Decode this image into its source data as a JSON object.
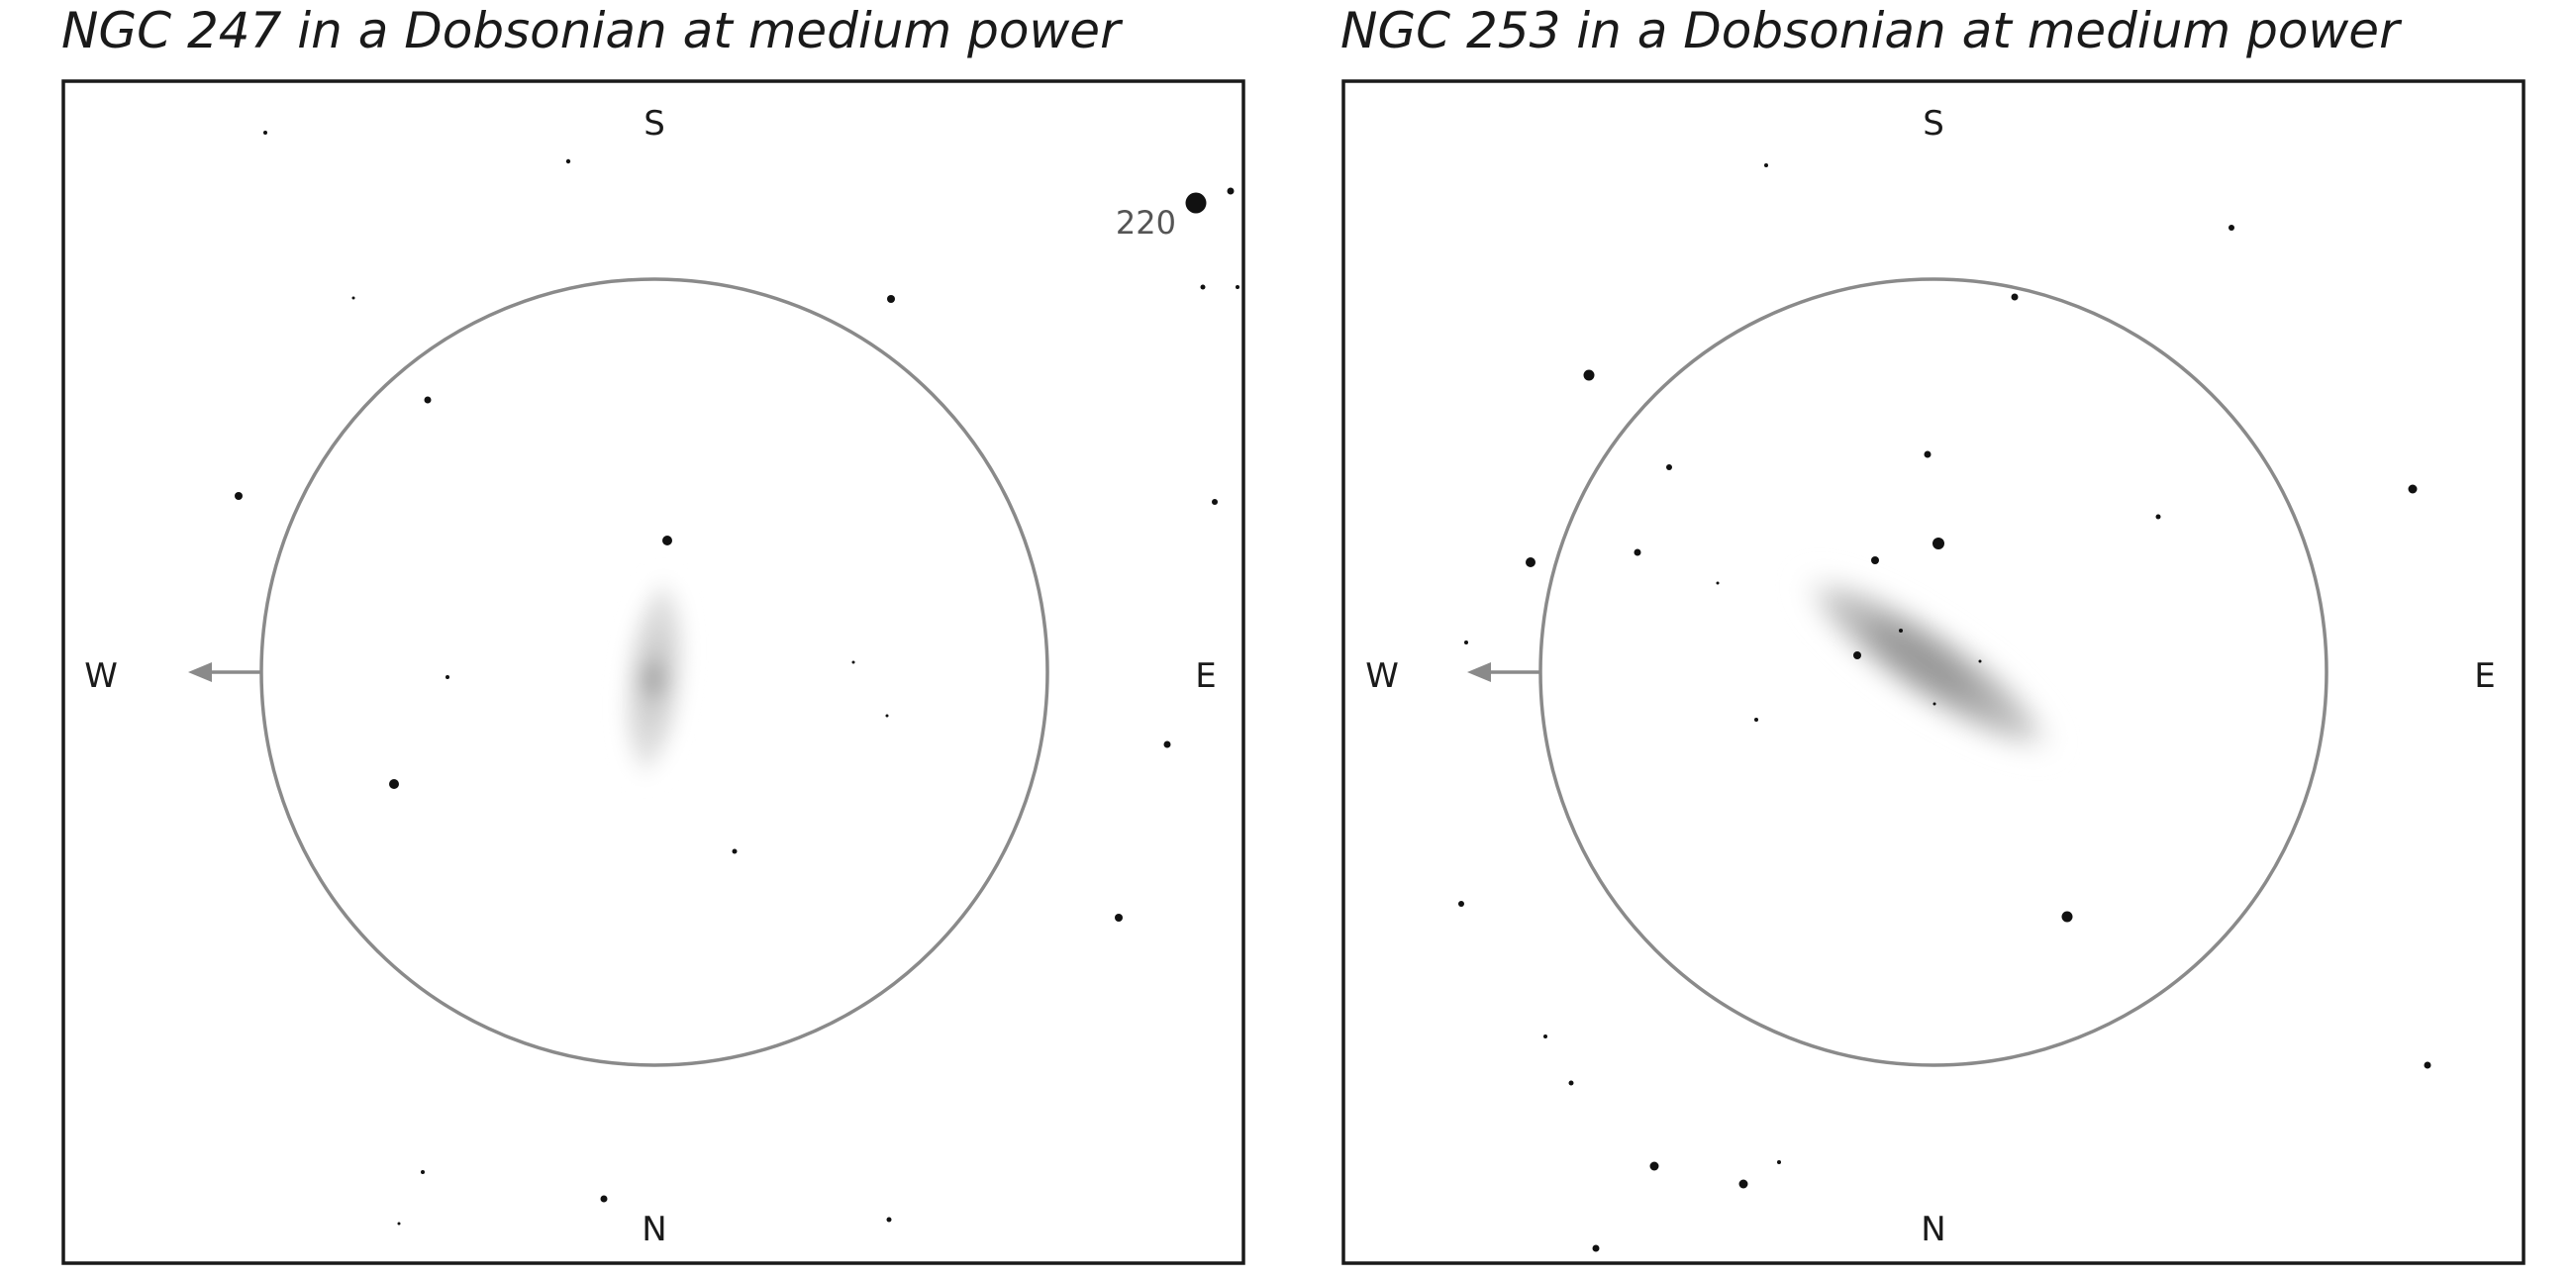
{
  "panels": [
    {
      "id": "ngc247",
      "title": "NGC 247 in a Dobsonian at medium power",
      "directions": {
        "south": "S",
        "north": "N",
        "west": "W",
        "east": "E"
      },
      "labels": [
        {
          "text": "220"
        }
      ]
    },
    {
      "id": "ngc253",
      "title": "NGC 253 in a Dobsonian at medium power",
      "directions": {
        "south": "S",
        "north": "N",
        "west": "W",
        "east": "E"
      },
      "labels": []
    }
  ],
  "colors": {
    "frame": "#1a1a1a",
    "field_circle": "#8a8a8a",
    "galaxy": "#9a9a9a",
    "star": "#111111"
  }
}
